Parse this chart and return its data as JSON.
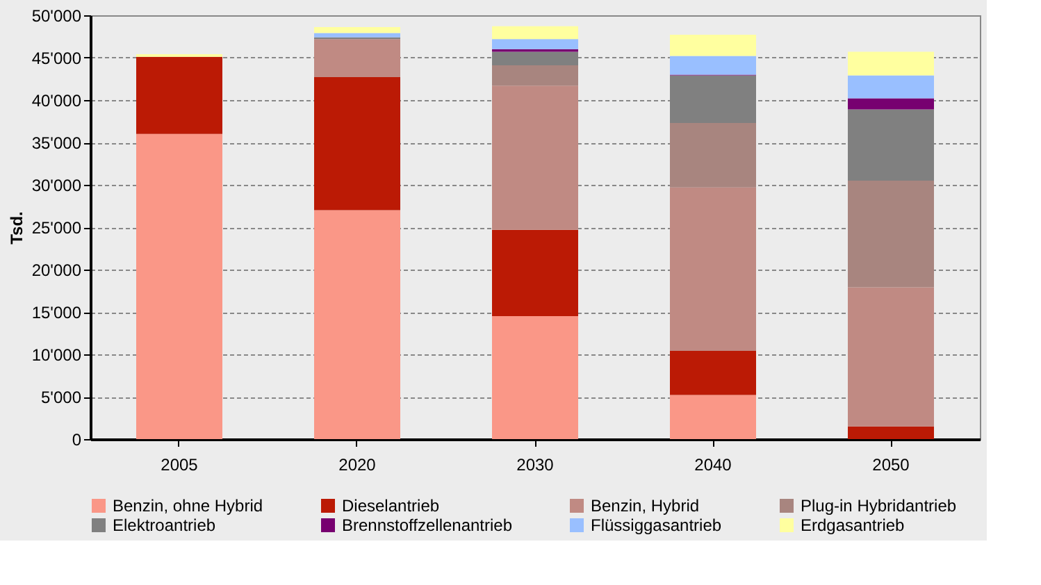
{
  "chart_data": {
    "type": "bar",
    "stacked": true,
    "ylabel": "Tsd.",
    "categories": [
      "2005",
      "2020",
      "2030",
      "2040",
      "2050"
    ],
    "series": [
      {
        "name": "Benzin, ohne Hybrid",
        "color": "#fa9787",
        "values": [
          36000,
          27000,
          14500,
          5200,
          0
        ]
      },
      {
        "name": "Dieselantrieb",
        "color": "#bb1a05",
        "values": [
          9100,
          15700,
          10200,
          5200,
          1500
        ]
      },
      {
        "name": "Benzin, Hybrid",
        "color": "#c08a83",
        "values": [
          0,
          4500,
          17000,
          19300,
          16400
        ]
      },
      {
        "name": "Plug-in Hybridantrieb",
        "color": "#a8857f",
        "values": [
          0,
          0,
          2400,
          7600,
          12600
        ]
      },
      {
        "name": "Elektroantrieb",
        "color": "#808080",
        "values": [
          0,
          200,
          1600,
          5600,
          8400
        ]
      },
      {
        "name": "Brennstoffzellenantrieb",
        "color": "#770070",
        "values": [
          0,
          0,
          300,
          100,
          1300
        ]
      },
      {
        "name": "Flüssiggasantrieb",
        "color": "#99bfff",
        "values": [
          0,
          500,
          1200,
          2200,
          2700
        ]
      },
      {
        "name": "Erdgasantrieb",
        "color": "#ffff9f",
        "values": [
          300,
          700,
          1500,
          2500,
          2800
        ]
      }
    ],
    "ylim": [
      0,
      50000
    ],
    "yticks": [
      0,
      {
        "value": 5000,
        "label": "5'000"
      },
      {
        "value": 10000,
        "label": "10'000"
      },
      {
        "value": 15000,
        "label": "15'000"
      },
      {
        "value": 20000,
        "label": "20'000"
      },
      {
        "value": 25000,
        "label": "25'000"
      },
      {
        "value": 30000,
        "label": "30'000"
      },
      {
        "value": 35000,
        "label": "35'000"
      },
      {
        "value": 40000,
        "label": "40'000"
      },
      {
        "value": 45000,
        "label": "45'000"
      },
      {
        "value": 50000,
        "label": "50'000"
      }
    ],
    "grid": "y",
    "legend": "bottom"
  }
}
